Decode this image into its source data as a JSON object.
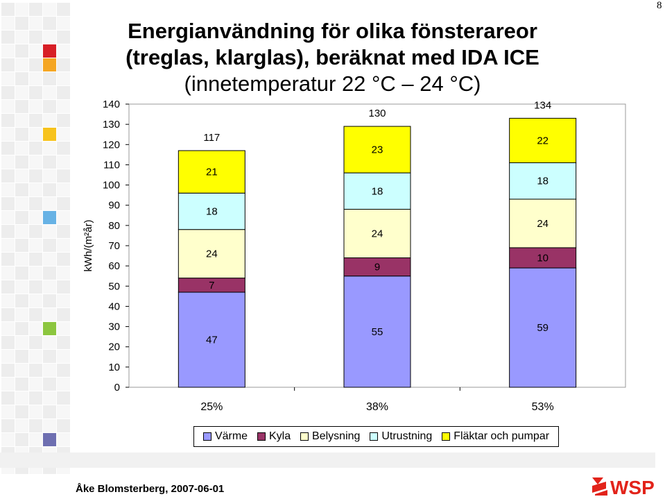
{
  "slide": {
    "number": "8",
    "title_lines": [
      "Energianvändning för olika fönsterareor",
      "(treglas, klarglas), beräknat med IDA ICE"
    ],
    "subtitle": "(innetemperatur 22 °C – 24 °C)",
    "footer": "Åke Blomsterberg, 2007-06-01",
    "logo_text": "WSP",
    "colors": {
      "logo_red": "#e2231a",
      "deco_red": "#d71f26",
      "deco_orange": "#f5a623",
      "deco_yellow": "#f7c31d",
      "deco_blue": "#67b2e5",
      "deco_green": "#8cc63f",
      "deco_purple": "#6e6fb1"
    }
  },
  "chart_data": {
    "type": "bar",
    "stacked": true,
    "categories": [
      "25%",
      "38%",
      "53%"
    ],
    "ylabel": "kWh/(m²år)",
    "ylim": [
      0,
      140
    ],
    "yticks": [
      0,
      10,
      20,
      30,
      40,
      50,
      60,
      70,
      80,
      90,
      100,
      110,
      120,
      130,
      140
    ],
    "grid": false,
    "legend": "bottom",
    "totals": [
      117,
      130,
      134
    ],
    "series": [
      {
        "name": "Värme",
        "color": "#9999ff",
        "values": [
          47,
          55,
          59
        ]
      },
      {
        "name": "Kyla",
        "color": "#993366",
        "values": [
          7,
          9,
          10
        ]
      },
      {
        "name": "Belysning",
        "color": "#ffffcc",
        "values": [
          24,
          24,
          24
        ]
      },
      {
        "name": "Utrustning",
        "color": "#ccffff",
        "values": [
          18,
          18,
          18
        ]
      },
      {
        "name": "Fläktar och pumpar",
        "color": "#ffff00",
        "values": [
          21,
          23,
          22
        ]
      }
    ]
  }
}
